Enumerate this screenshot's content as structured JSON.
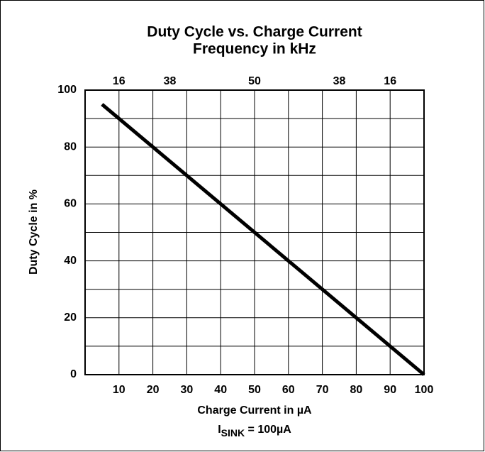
{
  "chart_data": {
    "type": "line",
    "title": "Duty Cycle vs. Charge Current",
    "subtitle": "Frequency in kHz",
    "xlabel": "Charge Current in µA",
    "ylabel": "Duty Cycle in %",
    "annotation": [
      "I",
      "SINK",
      " = 100µA"
    ],
    "series": [
      {
        "color": "#000000",
        "x": [
          5,
          100
        ],
        "values": [
          95,
          0
        ]
      }
    ],
    "xlim": [
      0,
      100
    ],
    "xticks": [
      10,
      20,
      30,
      40,
      50,
      60,
      70,
      80,
      90,
      100
    ],
    "ylim": [
      0,
      100
    ],
    "yticks": [
      0,
      20,
      40,
      60,
      80,
      100
    ],
    "yminor_grid": [
      10,
      30,
      50,
      70,
      90
    ],
    "x2ticks": [
      {
        "value": 10,
        "label": "16"
      },
      {
        "value": 25,
        "label": "38"
      },
      {
        "value": 50,
        "label": "50"
      },
      {
        "value": 75,
        "label": "38"
      },
      {
        "value": 90,
        "label": "16"
      }
    ],
    "grid": true
  }
}
